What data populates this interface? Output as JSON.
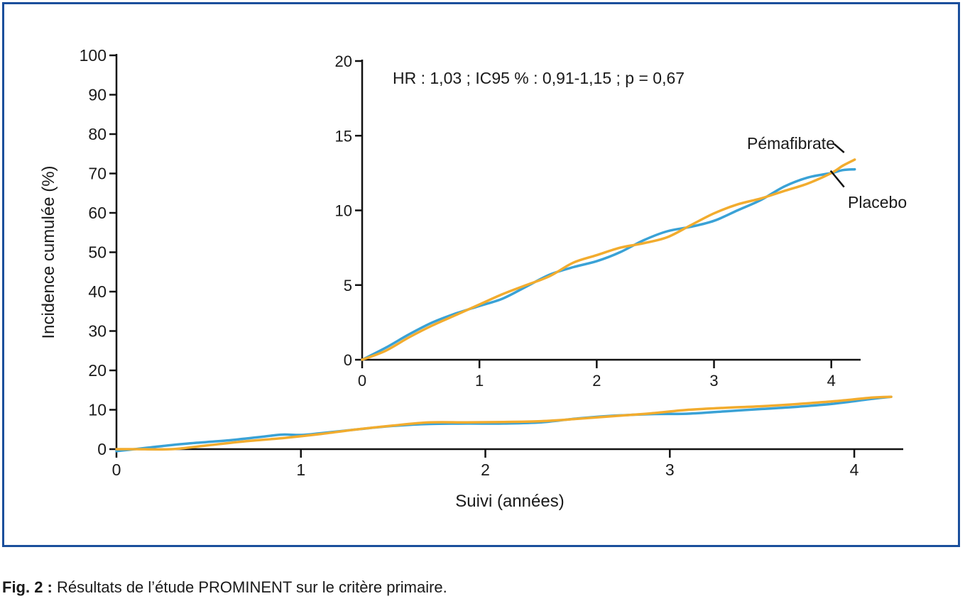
{
  "chart_data": [
    {
      "type": "line",
      "xlabel": "Suivi (années)",
      "ylabel": "Incidence cumulée (%)",
      "xlim": [
        0,
        4.25
      ],
      "ylim": [
        0,
        100
      ],
      "x_ticks": [
        "0",
        "1",
        "2",
        "3",
        "4"
      ],
      "y_ticks": [
        "0",
        "10",
        "20",
        "30",
        "40",
        "50",
        "60",
        "70",
        "80",
        "90",
        "100"
      ],
      "series": [
        {
          "name": "Placebo",
          "color": "#3aa2d6",
          "x": [
            0,
            0.1,
            0.25,
            0.4,
            0.6,
            0.8,
            0.9,
            1.0,
            1.1,
            1.3,
            1.5,
            1.7,
            1.9,
            2.1,
            2.3,
            2.5,
            2.7,
            2.9,
            3.1,
            3.3,
            3.5,
            3.7,
            3.9,
            4.1,
            4.2
          ],
          "y": [
            -0.5,
            0,
            0.8,
            1.5,
            2.2,
            3.2,
            3.7,
            3.6,
            4.0,
            5.0,
            5.9,
            6.4,
            6.5,
            6.5,
            6.8,
            7.8,
            8.5,
            8.9,
            9.0,
            9.6,
            10.2,
            10.8,
            11.6,
            12.8,
            13.3
          ]
        },
        {
          "name": "Pémafibrate",
          "color": "#f2ac2e",
          "x": [
            0,
            0.1,
            0.3,
            0.5,
            0.7,
            0.9,
            1.1,
            1.3,
            1.5,
            1.7,
            1.9,
            2.1,
            2.3,
            2.5,
            2.7,
            2.9,
            3.1,
            3.3,
            3.5,
            3.7,
            3.9,
            4.1,
            4.2
          ],
          "y": [
            0,
            0,
            0,
            1.0,
            2.0,
            2.8,
            3.8,
            5.0,
            6.0,
            6.8,
            6.8,
            6.9,
            7.1,
            7.7,
            8.4,
            9.1,
            10.0,
            10.5,
            10.9,
            11.5,
            12.2,
            13.1,
            13.3
          ]
        }
      ]
    },
    {
      "type": "line",
      "annotation": "HR : 1,03 ; IC95 % : 0,91-1,15 ; p = 0,67",
      "xlim": [
        0,
        4.25
      ],
      "ylim": [
        0,
        20
      ],
      "x_ticks": [
        "0",
        "1",
        "2",
        "3",
        "4"
      ],
      "y_ticks": [
        "0",
        "5",
        "10",
        "15",
        "20"
      ],
      "series": [
        {
          "name": "Placebo",
          "color": "#3aa2d6",
          "x": [
            0,
            0.2,
            0.4,
            0.6,
            0.8,
            1.0,
            1.2,
            1.4,
            1.6,
            1.8,
            2.0,
            2.2,
            2.4,
            2.6,
            2.8,
            3.0,
            3.2,
            3.4,
            3.6,
            3.8,
            4.0,
            4.1,
            4.2
          ],
          "y": [
            0,
            0.8,
            1.7,
            2.5,
            3.1,
            3.6,
            4.1,
            4.9,
            5.7,
            6.2,
            6.6,
            7.2,
            8.0,
            8.6,
            8.9,
            9.3,
            10.0,
            10.7,
            11.6,
            12.2,
            12.5,
            12.7,
            12.75
          ]
        },
        {
          "name": "Pémafibrate",
          "color": "#f2ac2e",
          "x": [
            0,
            0.2,
            0.4,
            0.6,
            0.8,
            1.0,
            1.2,
            1.4,
            1.6,
            1.8,
            2.0,
            2.2,
            2.4,
            2.6,
            2.8,
            3.0,
            3.2,
            3.4,
            3.6,
            3.8,
            4.0,
            4.1,
            4.2
          ],
          "y": [
            0,
            0.6,
            1.5,
            2.3,
            3.0,
            3.7,
            4.4,
            5.0,
            5.6,
            6.5,
            7.0,
            7.5,
            7.8,
            8.2,
            9.0,
            9.8,
            10.4,
            10.8,
            11.3,
            11.8,
            12.5,
            13.0,
            13.4
          ]
        }
      ]
    }
  ],
  "caption": {
    "label": "Fig. 2 :",
    "text": " Résultats de l’étude PROMINENT sur le critère primaire."
  }
}
